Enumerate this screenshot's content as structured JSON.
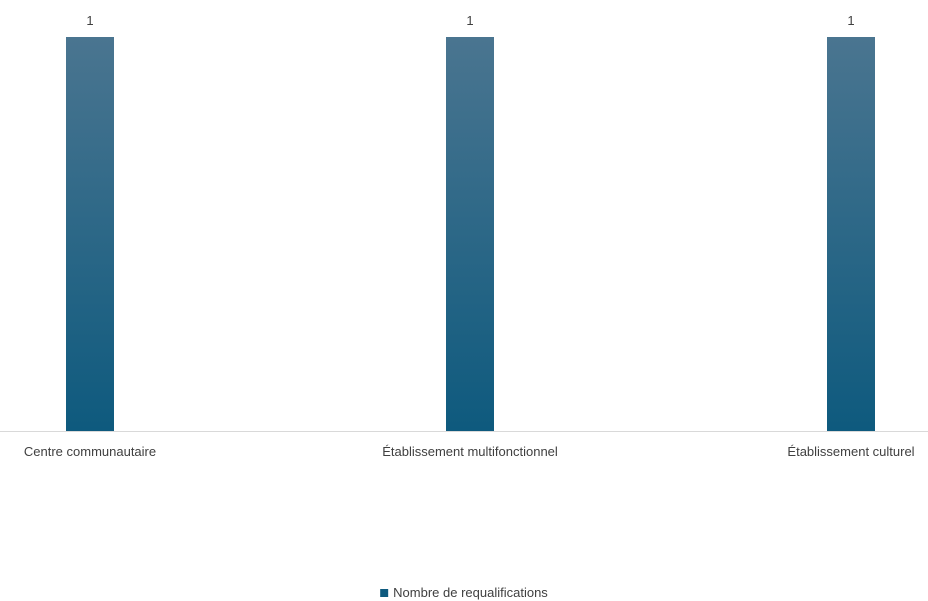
{
  "chart_data": {
    "type": "bar",
    "categories": [
      "Centre communautaire",
      "Établissement multifonctionnel",
      "Établissement culturel"
    ],
    "series": [
      {
        "name": "Nombre de requalifications",
        "values": [
          1,
          1,
          1
        ],
        "color": "#0E5A7E"
      }
    ],
    "data_labels": [
      "1",
      "1",
      "1"
    ],
    "ylim": [
      0,
      1
    ],
    "grid": false,
    "y_axis_visible": false,
    "legend_position": "bottom",
    "colors": {
      "bar_top": "#4A7590",
      "bar_bottom": "#0E5A7E",
      "axis_line": "#D9D9D9",
      "text": "#404040"
    }
  }
}
